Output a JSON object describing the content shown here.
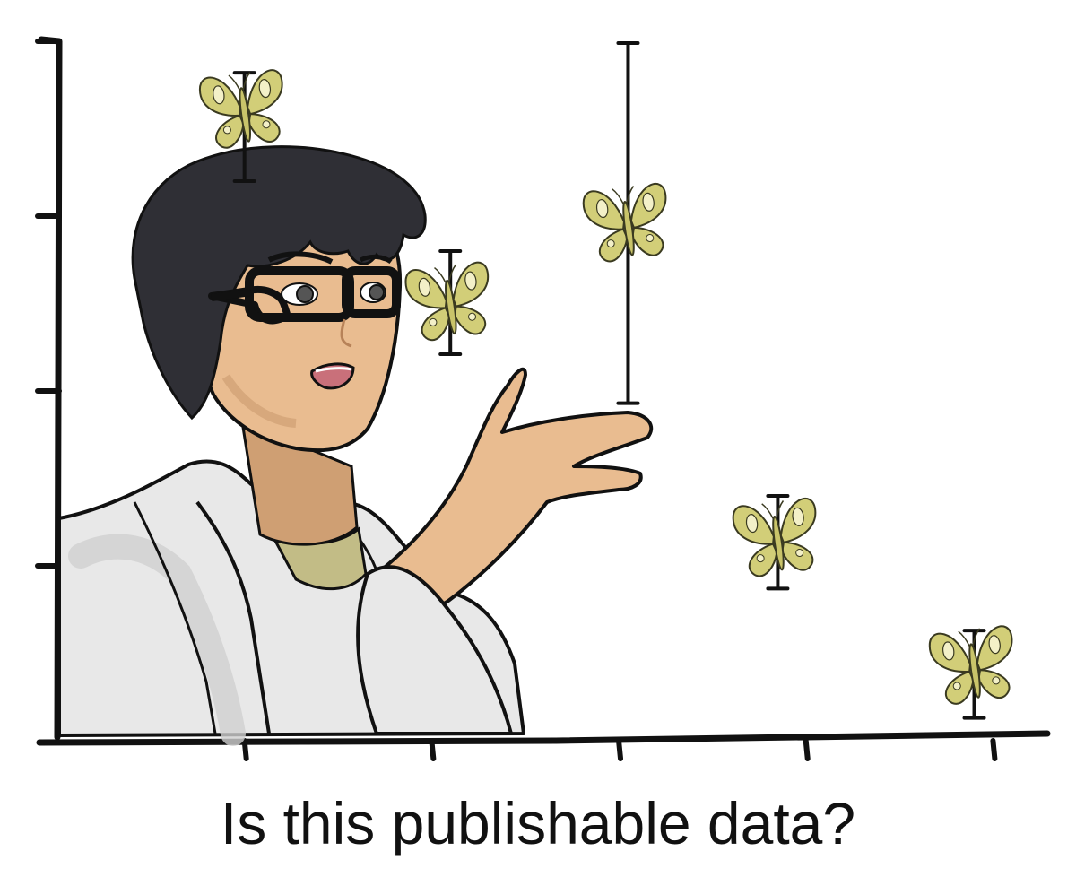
{
  "caption": "Is this publishable data?",
  "colors": {
    "butterfly": "#d2ce78",
    "butterfly_outline": "#3a3a20",
    "skin": "#e9bc90",
    "skin_shadow": "#cf9f73",
    "hair": "#2f2f35",
    "coat": "#e8e8e8",
    "coat_shadow": "#cfcfcf",
    "shirt": "#c2bc86",
    "ink": "#111111"
  },
  "chart_data": {
    "type": "scatter",
    "title": "",
    "xlabel": "",
    "ylabel": "",
    "marker": "butterfly-icon",
    "xlim": [
      0,
      5.3
    ],
    "ylim": [
      0,
      4
    ],
    "x_ticks": [
      1,
      2,
      3,
      4,
      5
    ],
    "y_ticks": [
      1,
      2,
      3,
      4
    ],
    "points": [
      {
        "x": 1.0,
        "y": 3.6,
        "err_low": 3.2,
        "err_high": 3.82
      },
      {
        "x": 2.1,
        "y": 2.5,
        "err_low": 2.21,
        "err_high": 2.8
      },
      {
        "x": 3.05,
        "y": 2.95,
        "err_low": 1.93,
        "err_high": 3.99
      },
      {
        "x": 3.85,
        "y": 1.15,
        "err_low": 0.87,
        "err_high": 1.4
      },
      {
        "x": 4.9,
        "y": 0.42,
        "err_low": 0.13,
        "err_high": 0.63
      }
    ]
  }
}
